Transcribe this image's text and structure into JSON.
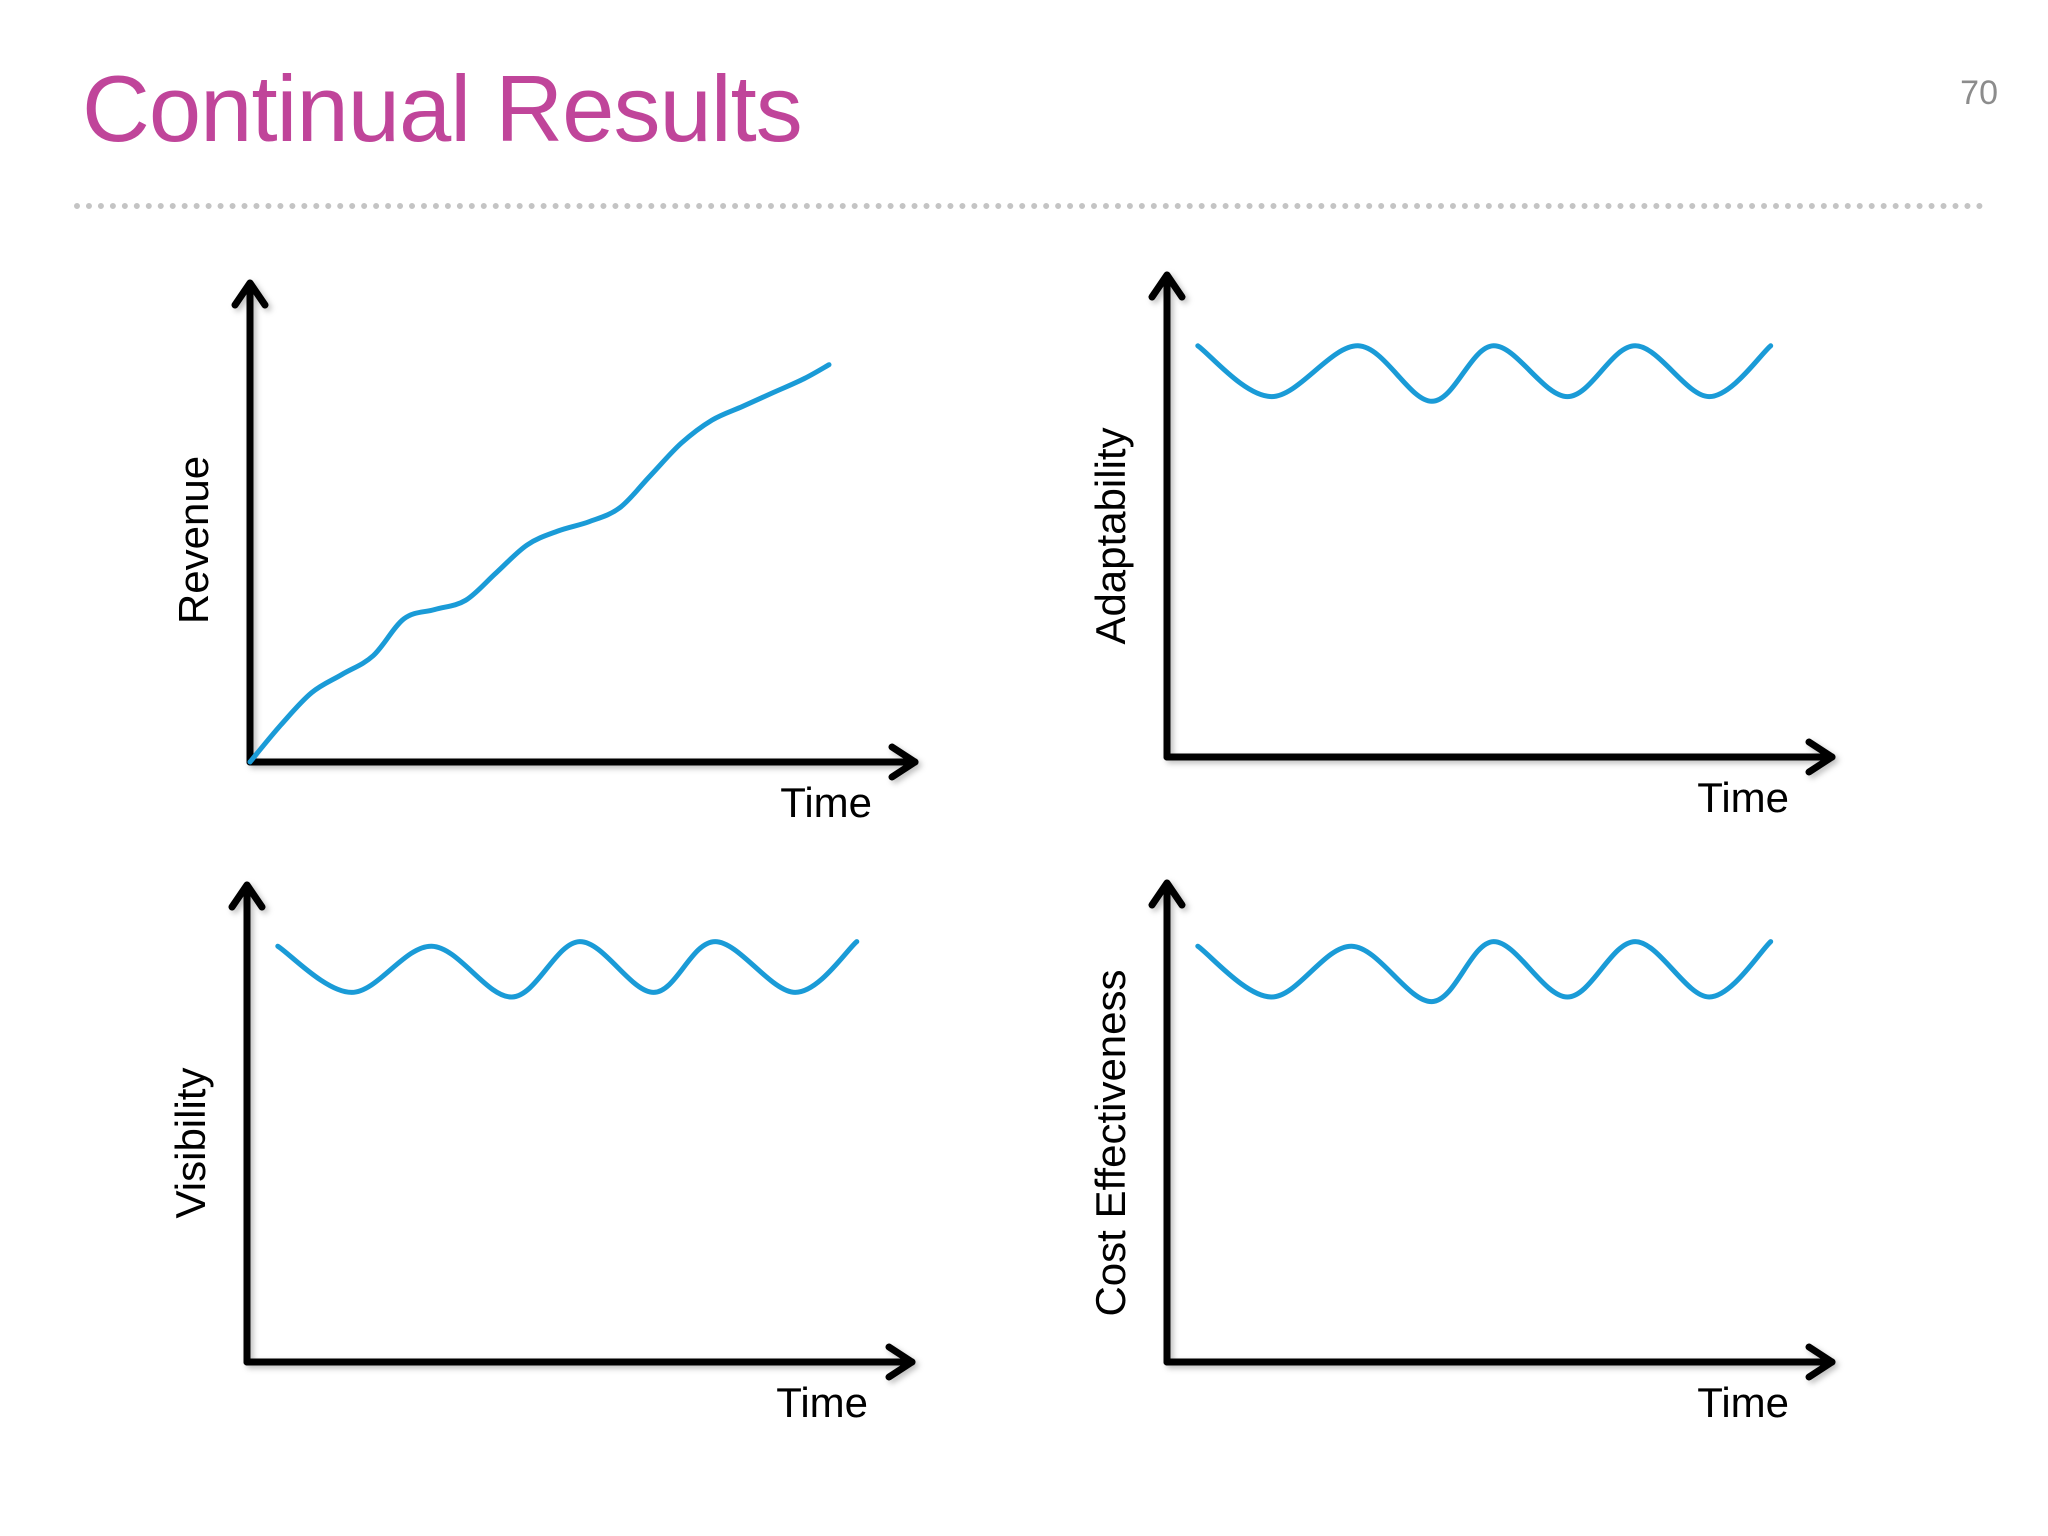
{
  "slide": {
    "title": "Continual Results",
    "page_number": "70"
  },
  "colors": {
    "title": "#c0459a",
    "curve": "#1a9bd7",
    "axis": "#000000"
  },
  "chart_data": [
    {
      "type": "line",
      "title": "",
      "xlabel": "Time",
      "ylabel": "Revenue",
      "xlim": [
        0,
        10
      ],
      "ylim": [
        0,
        10
      ],
      "grid": false,
      "series": [
        {
          "x": [
            0,
            0.5,
            1.0,
            1.5,
            2.0,
            2.5,
            3.0,
            3.5,
            4.0,
            4.5,
            5.0,
            5.5,
            6.0,
            6.5,
            7.0,
            7.5,
            8.0,
            8.5,
            9.0,
            9.4
          ],
          "values": [
            0.0,
            0.8,
            1.5,
            1.9,
            2.3,
            3.1,
            3.3,
            3.5,
            4.1,
            4.7,
            5.0,
            5.2,
            5.5,
            6.2,
            6.9,
            7.4,
            7.7,
            8.0,
            8.3,
            8.6
          ]
        }
      ]
    },
    {
      "type": "line",
      "title": "",
      "xlabel": "Time",
      "ylabel": "Adaptability",
      "xlim": [
        0,
        10
      ],
      "ylim": [
        0,
        10
      ],
      "grid": false,
      "series": [
        {
          "x": [
            0.5,
            1.7,
            3.1,
            4.3,
            5.3,
            6.5,
            7.6,
            8.8,
            9.8
          ],
          "values": [
            8.9,
            7.8,
            8.9,
            7.7,
            8.9,
            7.8,
            8.9,
            7.8,
            8.9
          ]
        }
      ]
    },
    {
      "type": "line",
      "title": "",
      "xlabel": "Time",
      "ylabel": "Visibility",
      "xlim": [
        0,
        10
      ],
      "ylim": [
        0,
        10
      ],
      "grid": false,
      "series": [
        {
          "x": [
            0.5,
            1.7,
            3.0,
            4.3,
            5.4,
            6.6,
            7.6,
            8.9,
            9.9
          ],
          "values": [
            9.0,
            8.0,
            9.0,
            7.9,
            9.1,
            8.0,
            9.1,
            8.0,
            9.1
          ]
        }
      ]
    },
    {
      "type": "line",
      "title": "",
      "xlabel": "Time",
      "ylabel": "Cost Effectiveness",
      "xlim": [
        0,
        10
      ],
      "ylim": [
        0,
        10
      ],
      "grid": false,
      "series": [
        {
          "x": [
            0.5,
            1.7,
            3.0,
            4.3,
            5.3,
            6.5,
            7.6,
            8.8,
            9.8
          ],
          "values": [
            9.0,
            7.9,
            9.0,
            7.8,
            9.1,
            7.9,
            9.1,
            7.9,
            9.1
          ]
        }
      ]
    }
  ]
}
